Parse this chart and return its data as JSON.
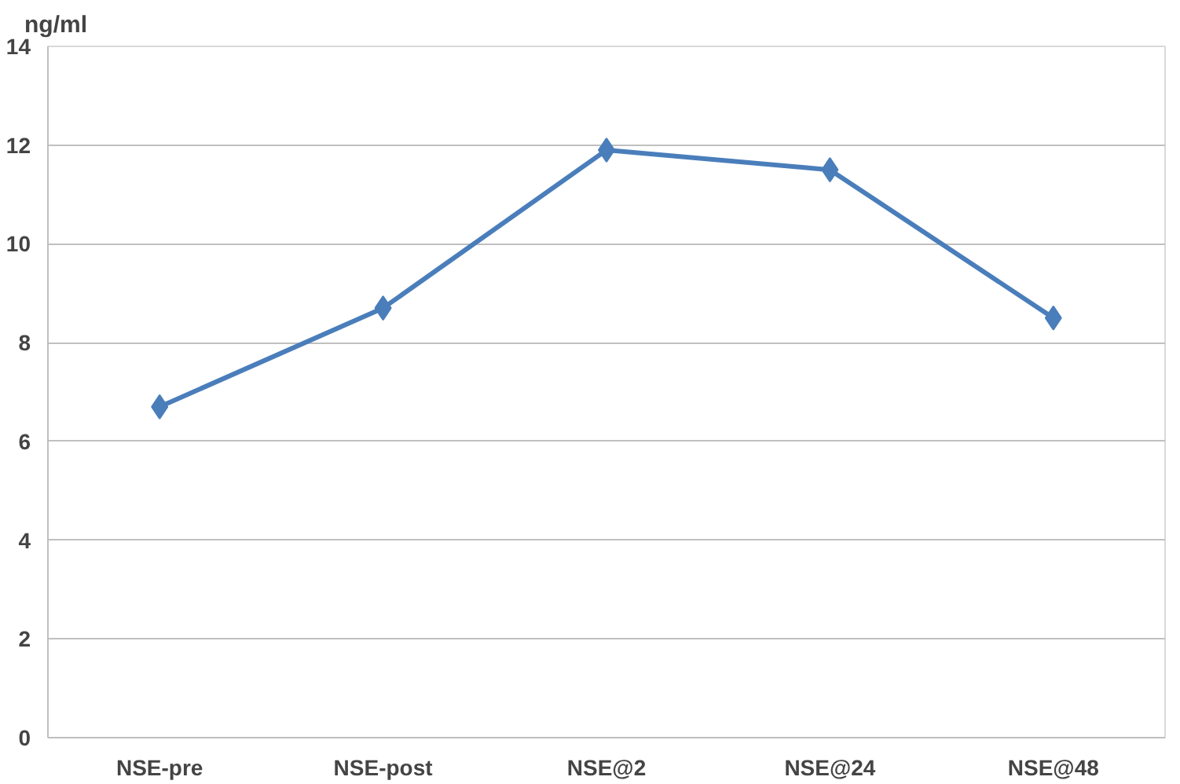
{
  "chart_data": {
    "type": "line",
    "ylabel": "ng/ml",
    "categories": [
      "NSE-pre",
      "NSE-post",
      "NSE@2",
      "NSE@24",
      "NSE@48"
    ],
    "series": [
      {
        "color": "#4a7ebb",
        "values": [
          6.7,
          8.7,
          11.9,
          11.5,
          8.5
        ]
      }
    ],
    "ylim": [
      0,
      14
    ],
    "yticks": [
      0,
      2,
      4,
      6,
      8,
      10,
      12,
      14
    ],
    "grid": "y",
    "marker": "diamond",
    "line_style": "solid"
  }
}
